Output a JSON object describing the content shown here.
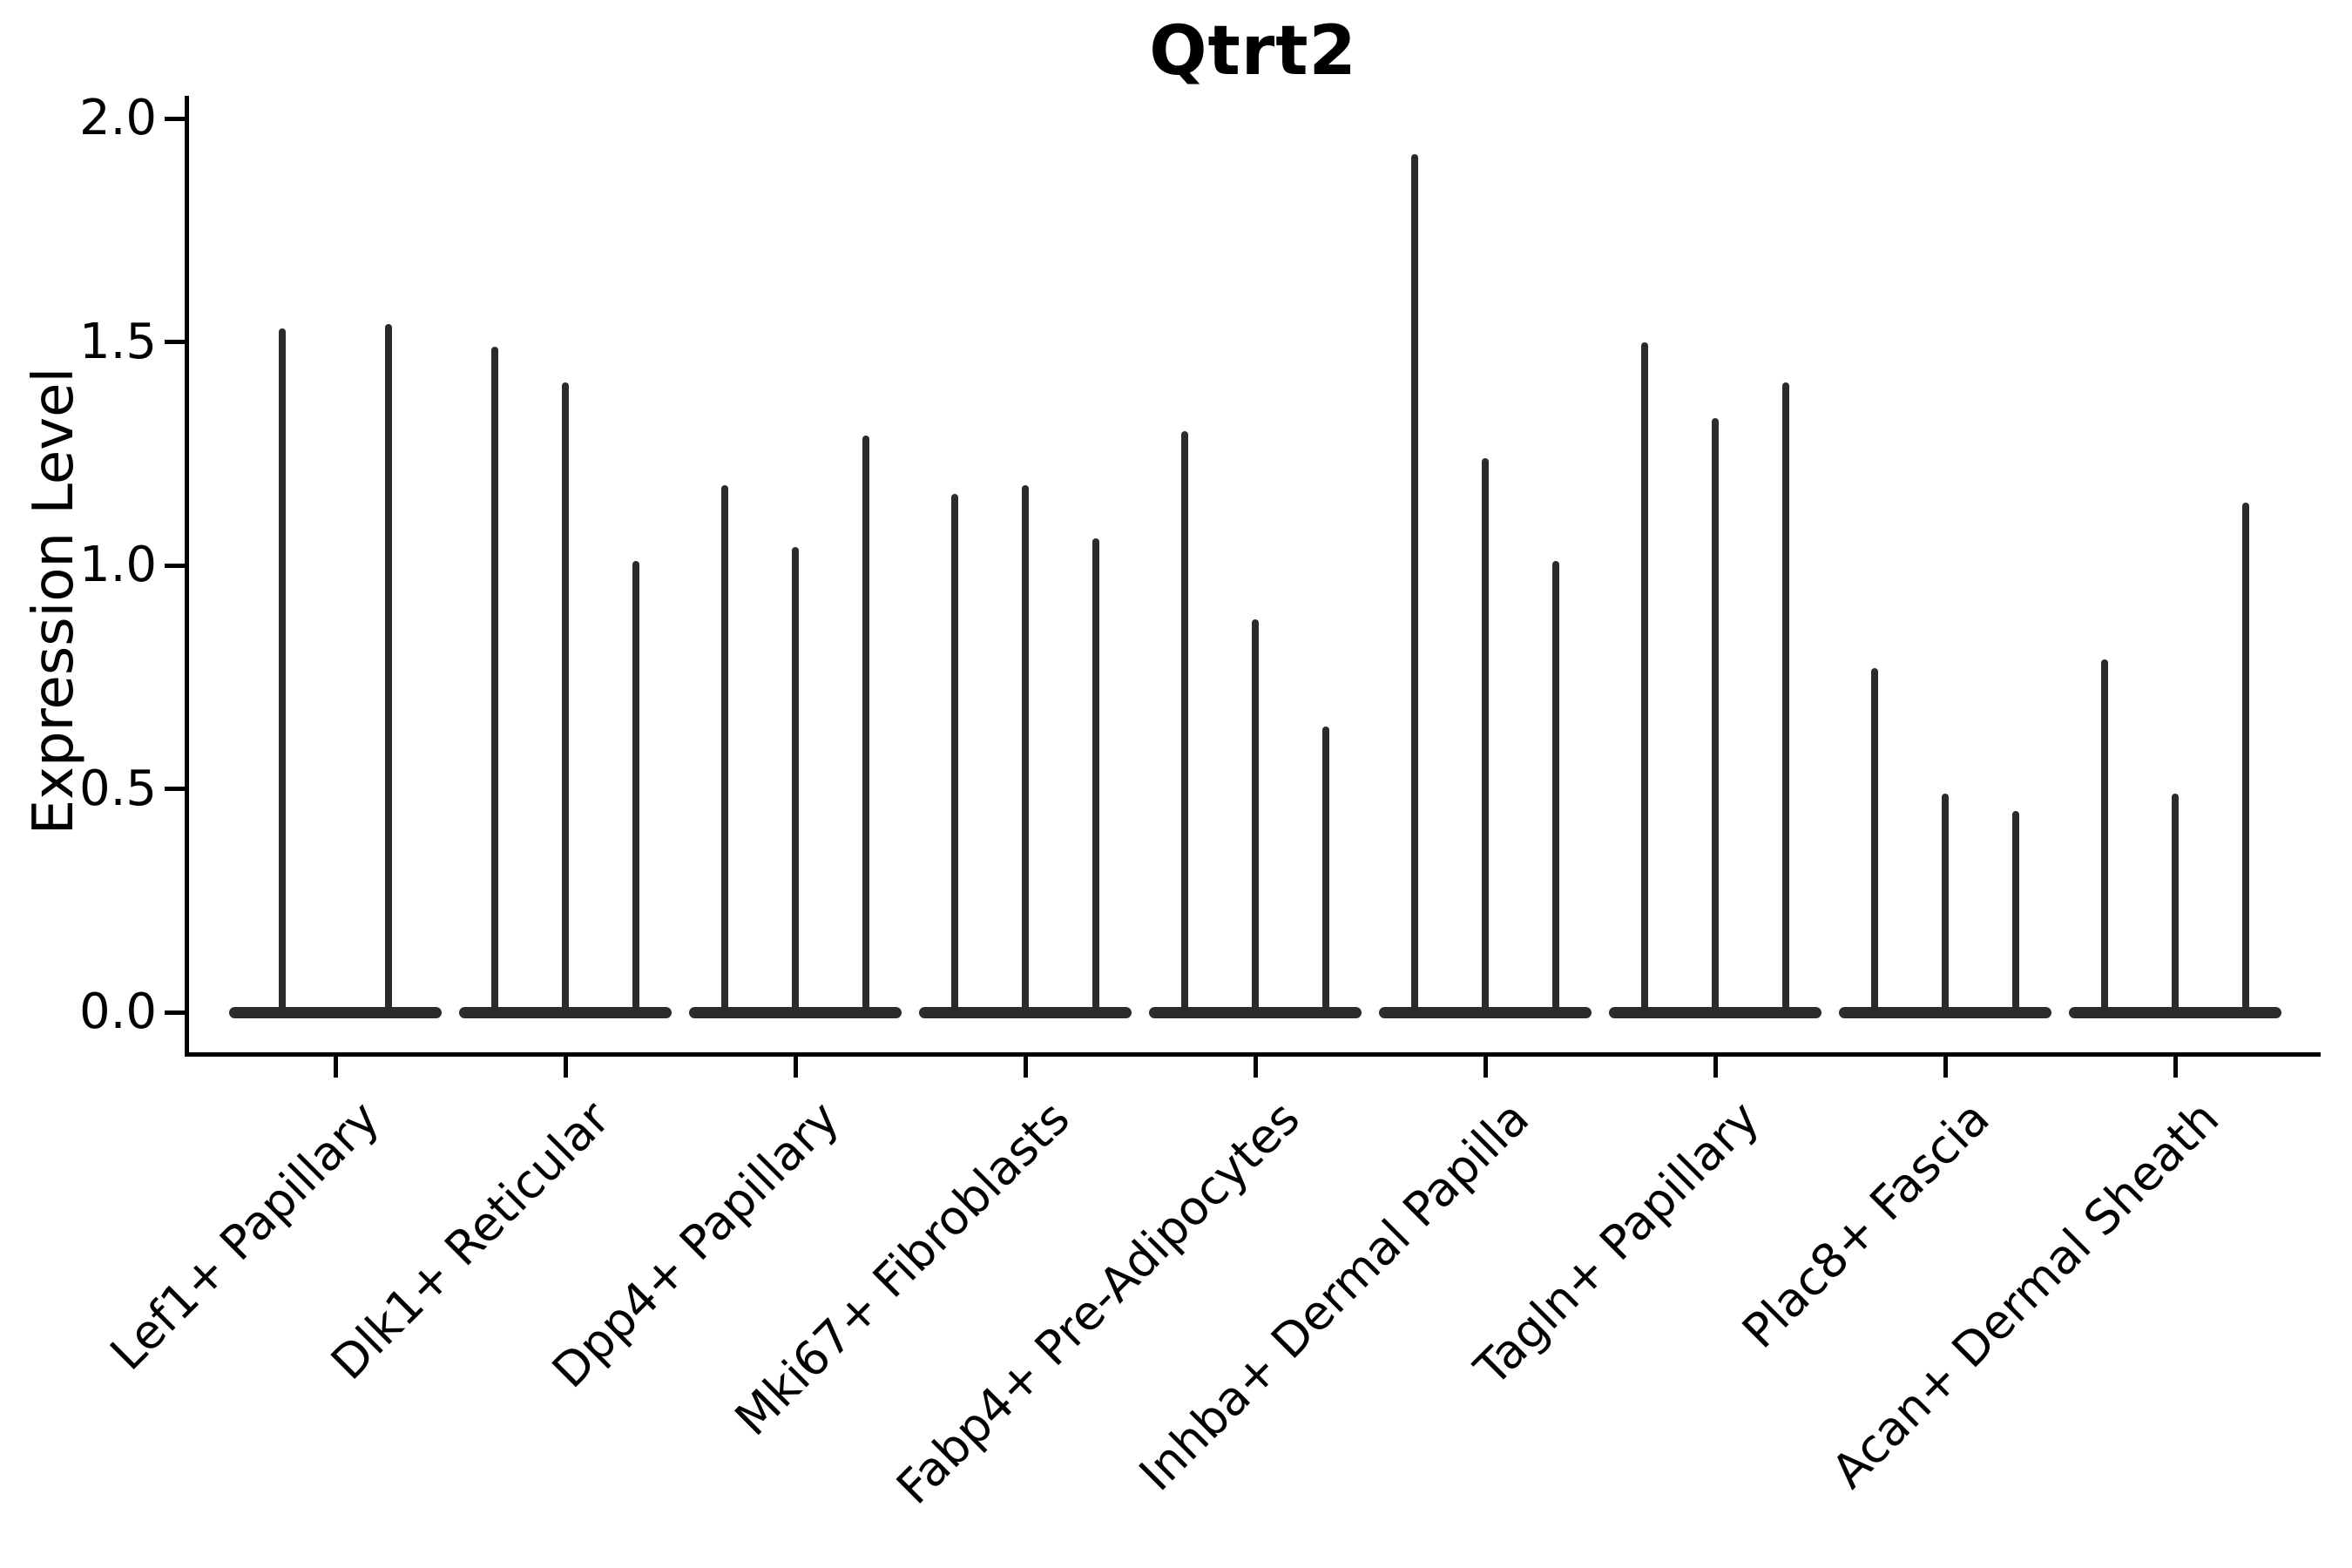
{
  "chart_data": {
    "type": "violin",
    "title": "Qtrt2",
    "ylabel": "Expression Level",
    "xlabel": "",
    "ytick_labels": [
      "0.0",
      "0.5",
      "1.0",
      "1.5",
      "2.0"
    ],
    "yticks": [
      0.0,
      0.5,
      1.0,
      1.5,
      2.0
    ],
    "ylim": [
      -0.09,
      2.05
    ],
    "grid": false,
    "legend": "none",
    "description": "Thin violin plot of Qtrt2 expression; each category shows 2-3 narrow violins whose upper tails reach the listed maximum expression values, with wide flat bases at 0.",
    "categories": [
      "Lef1+ Papillary",
      "Dlk1+ Reticular",
      "Dpp4+ Papillary",
      "Mki67+ Fibroblasts",
      "Fabp4+ Pre-Adipocytes",
      "Inhba+ Dermal Papilla",
      "Tagln+ Papillary",
      "Plac8+ Fascia",
      "Acan+ Dermal Sheath"
    ],
    "groups": [
      {
        "category": "Lef1+ Papillary",
        "violin_max_values": [
          1.53,
          1.54
        ]
      },
      {
        "category": "Dlk1+ Reticular",
        "violin_max_values": [
          1.49,
          1.41,
          1.01
        ]
      },
      {
        "category": "Dpp4+ Papillary",
        "violin_max_values": [
          1.18,
          1.04,
          1.29
        ]
      },
      {
        "category": "Mki67+ Fibroblasts",
        "violin_max_values": [
          1.16,
          1.18,
          1.06
        ]
      },
      {
        "category": "Fabp4+ Pre-Adipocytes",
        "violin_max_values": [
          1.3,
          0.88,
          0.64
        ]
      },
      {
        "category": "Inhba+ Dermal Papilla",
        "violin_max_values": [
          1.92,
          1.24,
          1.01
        ]
      },
      {
        "category": "Tagln+ Papillary",
        "violin_max_values": [
          1.5,
          1.33,
          1.41
        ]
      },
      {
        "category": "Plac8+ Fascia",
        "violin_max_values": [
          0.77,
          0.49,
          0.45
        ]
      },
      {
        "category": "Acan+ Dermal Sheath",
        "violin_max_values": [
          0.79,
          0.49,
          1.14
        ]
      }
    ],
    "baseline_value": 0.0,
    "colors": {
      "violin": "#2b2b2b",
      "axis": "#000000",
      "text": "#000000",
      "background": "#ffffff"
    }
  }
}
